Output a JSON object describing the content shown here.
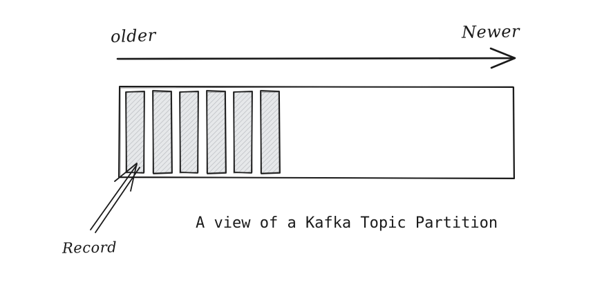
{
  "diagram": {
    "older_label": "older",
    "newer_label": "Newer",
    "record_label": "Record",
    "caption": "A view of a Kafka Topic Partition",
    "record_count": 6,
    "colors": {
      "stroke": "#1a1a1a",
      "record_fill": "#e6e8ea",
      "hatch": "#b9bcc0",
      "background": "#ffffff"
    }
  }
}
